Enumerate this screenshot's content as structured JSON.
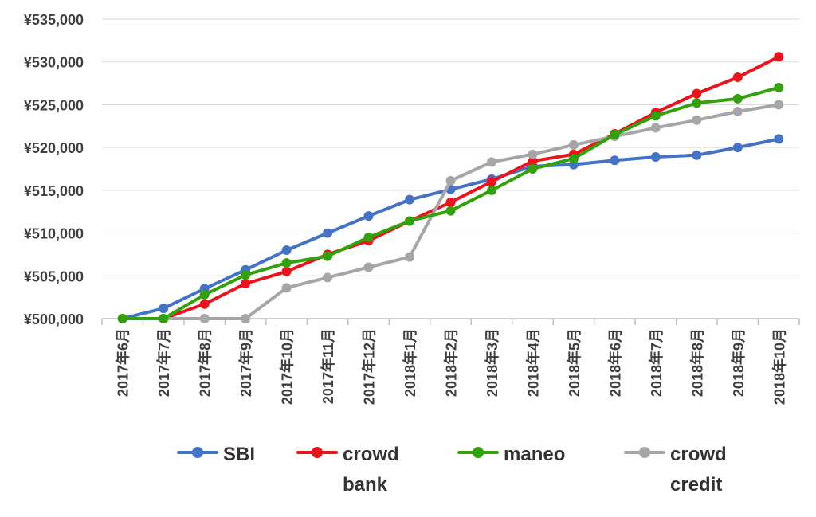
{
  "chart_data": {
    "type": "line",
    "categories": [
      "2017年6月",
      "2017年7月",
      "2017年8月",
      "2017年9月",
      "2017年10月",
      "2017年11月",
      "2017年12月",
      "2018年1月",
      "2018年2月",
      "2018年3月",
      "2018年4月",
      "2018年5月",
      "2018年6月",
      "2018年7月",
      "2018年8月",
      "2018年9月",
      "2018年10月"
    ],
    "ylim": [
      500000,
      535000
    ],
    "yticks": [
      "¥500,000",
      "¥505,000",
      "¥510,000",
      "¥515,000",
      "¥520,000",
      "¥525,000",
      "¥530,000",
      "¥535,000"
    ],
    "grid": true,
    "legend_position": "bottom",
    "series": [
      {
        "name": "SBI",
        "color": "#4472C4",
        "values": [
          500000,
          501200,
          503500,
          505700,
          508000,
          510000,
          512000,
          513900,
          515100,
          516300,
          517800,
          518000,
          518500,
          518900,
          519100,
          520000,
          521000
        ]
      },
      {
        "name": "crowd bank",
        "color": "#E8141E",
        "values": [
          500000,
          500000,
          501700,
          504100,
          505500,
          507500,
          509100,
          511400,
          513600,
          516000,
          518400,
          519200,
          521600,
          524100,
          526300,
          528200,
          530600
        ]
      },
      {
        "name": "maneo",
        "color": "#33A10E",
        "values": [
          500000,
          500000,
          502800,
          505100,
          506500,
          507300,
          509500,
          511400,
          512600,
          515000,
          517500,
          518700,
          521500,
          523700,
          525200,
          525700,
          527000
        ]
      },
      {
        "name": "crowd credit",
        "color": "#A6A6A6",
        "values": [
          500000,
          500000,
          500000,
          500000,
          503600,
          504800,
          506000,
          507200,
          516100,
          518300,
          519200,
          520300,
          521300,
          522300,
          523200,
          524200,
          525000
        ]
      }
    ]
  }
}
